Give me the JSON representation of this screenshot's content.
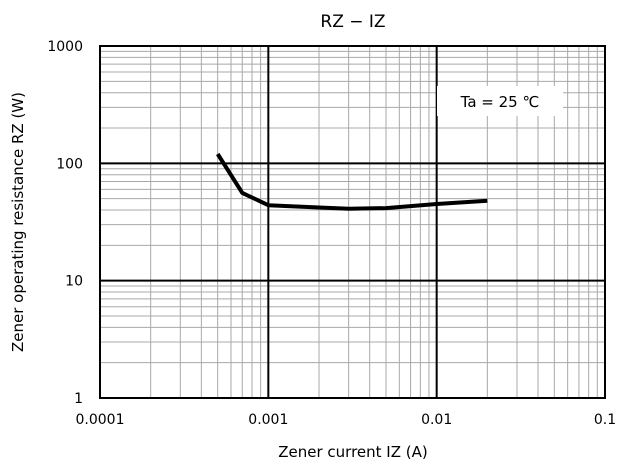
{
  "chart_data": {
    "type": "line",
    "title": "RZ − IZ",
    "xlabel": "Zener current IZ (A)",
    "ylabel": "Zener operating resistance RZ (W)",
    "x_scale": "log",
    "y_scale": "log",
    "xlim": [
      0.0001,
      0.1
    ],
    "ylim": [
      1,
      1000
    ],
    "x_ticks": [
      0.0001,
      0.001,
      0.01,
      0.1
    ],
    "x_tick_labels": [
      "0.0001",
      "0.001",
      "0.01",
      "0.1"
    ],
    "y_ticks": [
      1,
      10,
      100,
      1000
    ],
    "y_tick_labels": [
      "1",
      "10",
      "100",
      "1000"
    ],
    "grid": true,
    "annotation": "Ta = 25 ℃",
    "series": [
      {
        "color": "#000000",
        "x": [
          0.0005,
          0.0007,
          0.001,
          0.002,
          0.003,
          0.005,
          0.01,
          0.02
        ],
        "y": [
          120,
          56,
          44,
          42,
          41,
          41.5,
          45,
          48
        ]
      }
    ]
  }
}
